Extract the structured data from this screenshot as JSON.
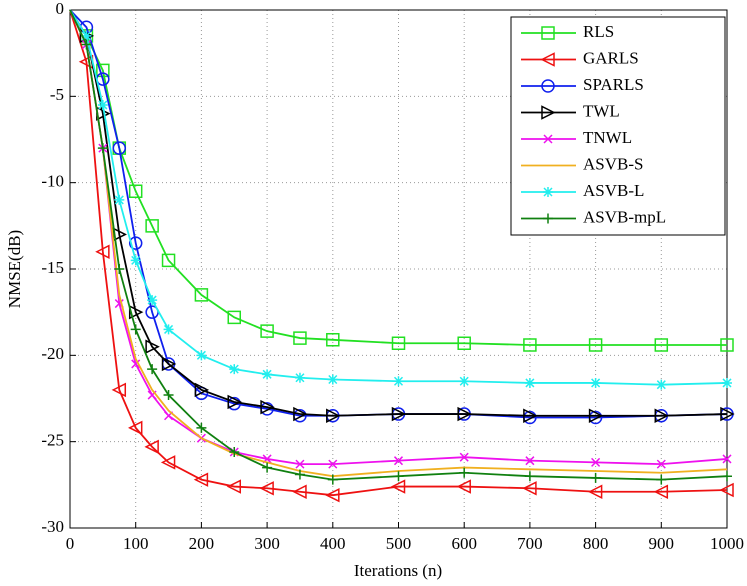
{
  "chart_data": {
    "type": "line",
    "xlabel": "Iterations (n)",
    "ylabel": "NMSE(dB)",
    "x": [
      0,
      25,
      50,
      75,
      100,
      125,
      150,
      200,
      250,
      300,
      350,
      400,
      500,
      600,
      700,
      800,
      900,
      1000
    ],
    "xlim": [
      0,
      1000
    ],
    "xticks": [
      0,
      100,
      200,
      300,
      400,
      500,
      600,
      700,
      800,
      900,
      1000
    ],
    "ylim": [
      -30,
      0
    ],
    "yticks": [
      -30,
      -25,
      -20,
      -15,
      -10,
      -5,
      0
    ],
    "grid": true,
    "legend": "upper right",
    "series": [
      {
        "name": "RLS",
        "color": "#22e022",
        "marker": "square",
        "values": [
          0,
          -1.5,
          -3.5,
          -8,
          -10.5,
          -12.5,
          -14.5,
          -16.5,
          -17.8,
          -18.6,
          -19.0,
          -19.1,
          -19.3,
          -19.3,
          -19.4,
          -19.4,
          -19.4,
          -19.4
        ]
      },
      {
        "name": "GARLS",
        "color": "#ee1111",
        "marker": "triangle-left",
        "values": [
          0,
          -3,
          -14,
          -22,
          -24.2,
          -25.3,
          -26.2,
          -27.2,
          -27.6,
          -27.7,
          -27.9,
          -28.1,
          -27.6,
          -27.6,
          -27.7,
          -27.9,
          -27.9,
          -27.8
        ]
      },
      {
        "name": "SPARLS",
        "color": "#1020ee",
        "marker": "circle",
        "values": [
          0,
          -1,
          -4,
          -8,
          -13.5,
          -17.5,
          -20.5,
          -22.2,
          -22.8,
          -23.1,
          -23.5,
          -23.5,
          -23.4,
          -23.4,
          -23.6,
          -23.6,
          -23.5,
          -23.4
        ]
      },
      {
        "name": "TWL",
        "color": "#000000",
        "marker": "triangle-right",
        "values": [
          0,
          -1.5,
          -6,
          -13,
          -17.5,
          -19.5,
          -20.5,
          -22,
          -22.7,
          -23.0,
          -23.4,
          -23.5,
          -23.4,
          -23.4,
          -23.5,
          -23.5,
          -23.5,
          -23.4
        ]
      },
      {
        "name": "TNWL",
        "color": "#ee11ee",
        "marker": "x",
        "values": [
          0,
          -2,
          -8,
          -17,
          -20.5,
          -22.3,
          -23.5,
          -24.8,
          -25.6,
          -26,
          -26.3,
          -26.3,
          -26.1,
          -25.9,
          -26.1,
          -26.2,
          -26.3,
          -26.0
        ]
      },
      {
        "name": "ASVB-S",
        "color": "#f0b020",
        "marker": "none",
        "values": [
          0,
          -2,
          -8,
          -16.5,
          -20.2,
          -22,
          -23.2,
          -24.8,
          -25.7,
          -26.2,
          -26.7,
          -27,
          -26.7,
          -26.5,
          -26.6,
          -26.7,
          -26.8,
          -26.6
        ]
      },
      {
        "name": "ASVB-L",
        "color": "#22eeee",
        "marker": "asterisk",
        "values": [
          0,
          -1.5,
          -5.5,
          -11,
          -14.5,
          -16.8,
          -18.5,
          -20,
          -20.8,
          -21.1,
          -21.3,
          -21.4,
          -21.5,
          -21.5,
          -21.6,
          -21.6,
          -21.7,
          -21.6
        ]
      },
      {
        "name": "ASVB-mpL",
        "color": "#108010",
        "marker": "plus",
        "values": [
          0,
          -2,
          -8,
          -15,
          -18.5,
          -20.8,
          -22.3,
          -24.2,
          -25.6,
          -26.5,
          -26.9,
          -27.2,
          -27,
          -26.8,
          -27,
          -27.1,
          -27.2,
          -27.0
        ]
      }
    ]
  }
}
